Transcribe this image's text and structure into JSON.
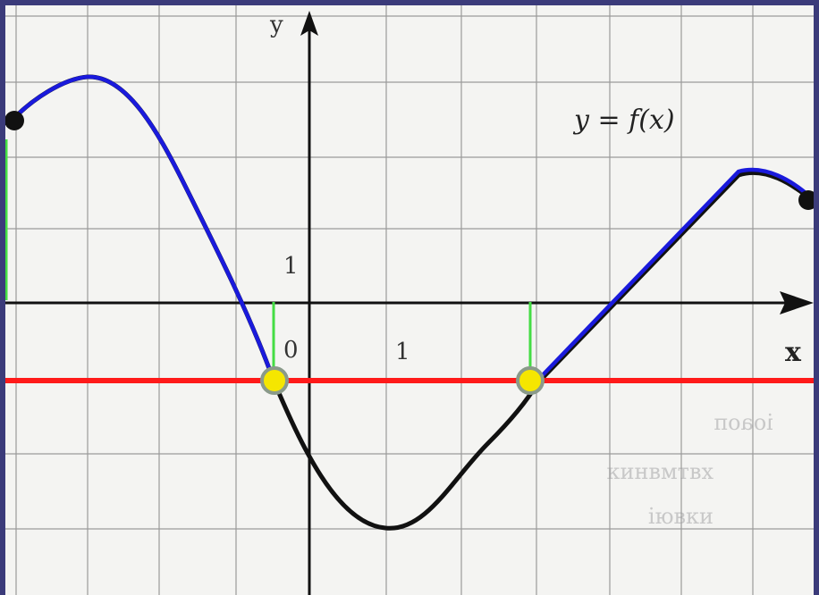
{
  "graph": {
    "equation": "y = f(x)",
    "x_axis_label": "x",
    "y_axis_label": "y",
    "origin_label": "0",
    "x_tick_label": "1",
    "y_tick_label": "1",
    "mirrored_text": [
      "іоаоп",
      "кинвмтвх",
      "іювки"
    ]
  },
  "colors": {
    "frame": "#3b3b7a",
    "paper": "#f4f4f2",
    "grid": "#9a9a9a",
    "axes": "#111111",
    "curve": "#111111",
    "highlight_curve": "#1a1adc",
    "horizontal_line": "#ff1a1a",
    "intersection_fill": "#f5e600",
    "intersection_stroke": "#8a9a8a",
    "marker_lines": "#44dd44"
  },
  "icons": {
    "axis_arrow": "arrow-head",
    "endpoint": "filled-dot",
    "intersection": "yellow-dot"
  }
}
